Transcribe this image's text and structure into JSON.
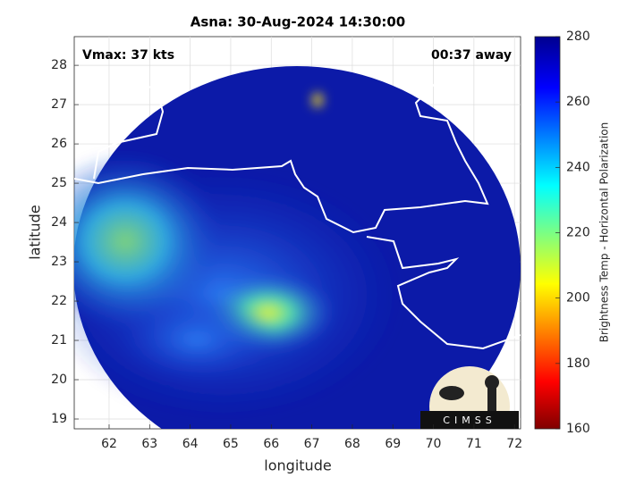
{
  "chart_data": {
    "type": "map",
    "title": "Asna: 30-Aug-2024 14:30:00",
    "annotations": [
      "Vmax: 37 kts",
      "00:37 away"
    ],
    "xlabel": "longitude",
    "ylabel": "latitude",
    "xlim": [
      61.14,
      72.15
    ],
    "xticks": [
      62,
      63,
      64,
      65,
      66,
      67,
      68,
      69,
      70,
      71,
      72
    ],
    "ylim": [
      18.75,
      28.73
    ],
    "yticks": [
      19,
      20,
      21,
      22,
      23,
      24,
      25,
      26,
      27,
      28
    ],
    "grid": true,
    "colorbar": {
      "label": "Brightness Temp - Horizontal Polarization",
      "lim": [
        160,
        280
      ],
      "ticks": [
        160,
        180,
        200,
        220,
        240,
        260,
        280
      ]
    },
    "logo": "CIMSS"
  }
}
